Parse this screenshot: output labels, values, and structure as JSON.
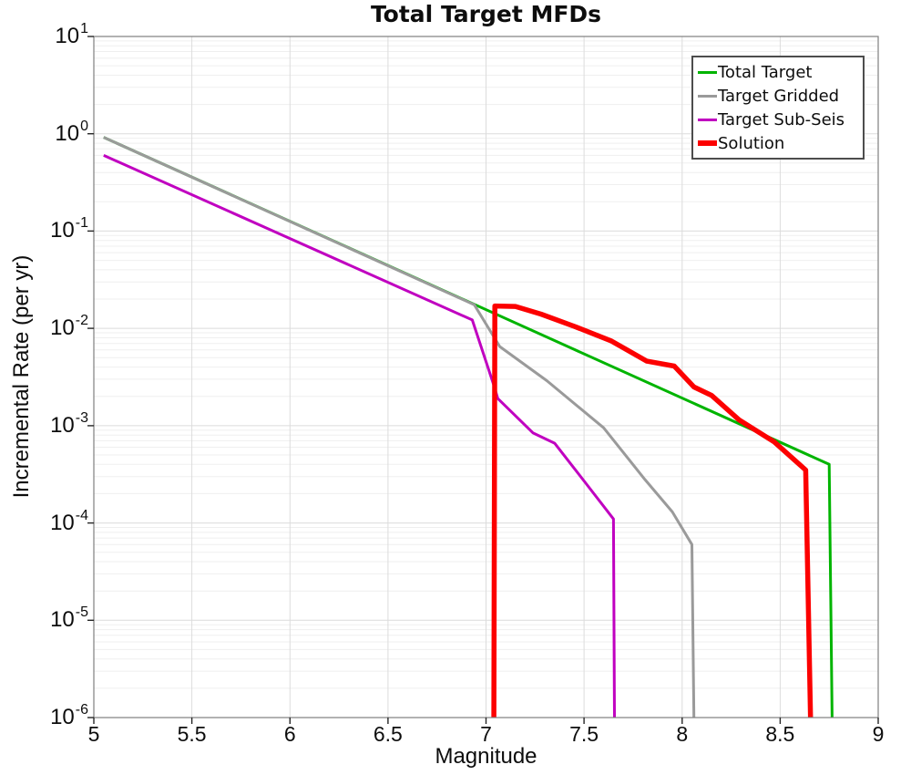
{
  "chart_data": {
    "type": "line",
    "title": "Total Target MFDs",
    "xlabel": "Magnitude",
    "ylabel": "Incremental Rate (per yr)",
    "x_axis": {
      "min": 5,
      "max": 9,
      "tick_step": 0.5,
      "ticks": [
        5,
        5.5,
        6,
        6.5,
        7,
        7.5,
        8,
        8.5,
        9
      ],
      "tick_labels": [
        "5",
        "5.5",
        "6",
        "6.5",
        "7",
        "7.5",
        "8",
        "8.5",
        "9"
      ]
    },
    "y_axis": {
      "scale": "log",
      "min_exp": -6,
      "max_exp": 1,
      "tick_exponents": [
        1,
        0,
        -1,
        -2,
        -3,
        -4,
        -5,
        -6
      ],
      "tick_base": "10"
    },
    "grid": {
      "horizontal_major": true,
      "horizontal_log_minor": true,
      "vertical_major_step": 0.5
    },
    "legend_position": "top-right",
    "series": [
      {
        "name": "Total Target",
        "color": "#00b400",
        "width": 3,
        "points": [
          [
            5.05,
            0.92
          ],
          [
            8.75,
            0.0004
          ],
          [
            8.765,
            1e-06
          ]
        ]
      },
      {
        "name": "Target Gridded",
        "color": "#9a9a9a",
        "width": 3,
        "points": [
          [
            5.05,
            0.92
          ],
          [
            6.94,
            0.0175
          ],
          [
            7.07,
            0.0065
          ],
          [
            7.31,
            0.0029
          ],
          [
            7.6,
            0.00095
          ],
          [
            7.81,
            0.00028
          ],
          [
            7.95,
            0.00013
          ],
          [
            8.05,
            6e-05
          ],
          [
            8.06,
            1e-06
          ]
        ]
      },
      {
        "name": "Target Sub-Seis",
        "color": "#c000c0",
        "width": 3,
        "points": [
          [
            5.05,
            0.6
          ],
          [
            6.93,
            0.0122
          ],
          [
            7.04,
            0.0026
          ],
          [
            7.06,
            0.0019
          ],
          [
            7.24,
            0.00084
          ],
          [
            7.35,
            0.00066
          ],
          [
            7.5,
            0.00027
          ],
          [
            7.65,
            0.00011
          ],
          [
            7.655,
            1e-06
          ]
        ]
      },
      {
        "name": "Solution",
        "color": "#fc0000",
        "width": 5.5,
        "points": [
          [
            7.04,
            1e-06
          ],
          [
            7.045,
            0.017
          ],
          [
            7.15,
            0.0168
          ],
          [
            7.28,
            0.014
          ],
          [
            7.45,
            0.0105
          ],
          [
            7.64,
            0.0074
          ],
          [
            7.82,
            0.0046
          ],
          [
            7.96,
            0.0041
          ],
          [
            8.06,
            0.0025
          ],
          [
            8.15,
            0.00205
          ],
          [
            8.29,
            0.00115
          ],
          [
            8.47,
            0.00068
          ],
          [
            8.63,
            0.00035
          ],
          [
            8.655,
            1e-06
          ]
        ]
      }
    ],
    "style": {
      "grid_major_color": "#dcdcdc",
      "grid_minor_color": "#efefef",
      "plot_border_color": "#7f7f7f",
      "tick_color": "#262626"
    }
  }
}
